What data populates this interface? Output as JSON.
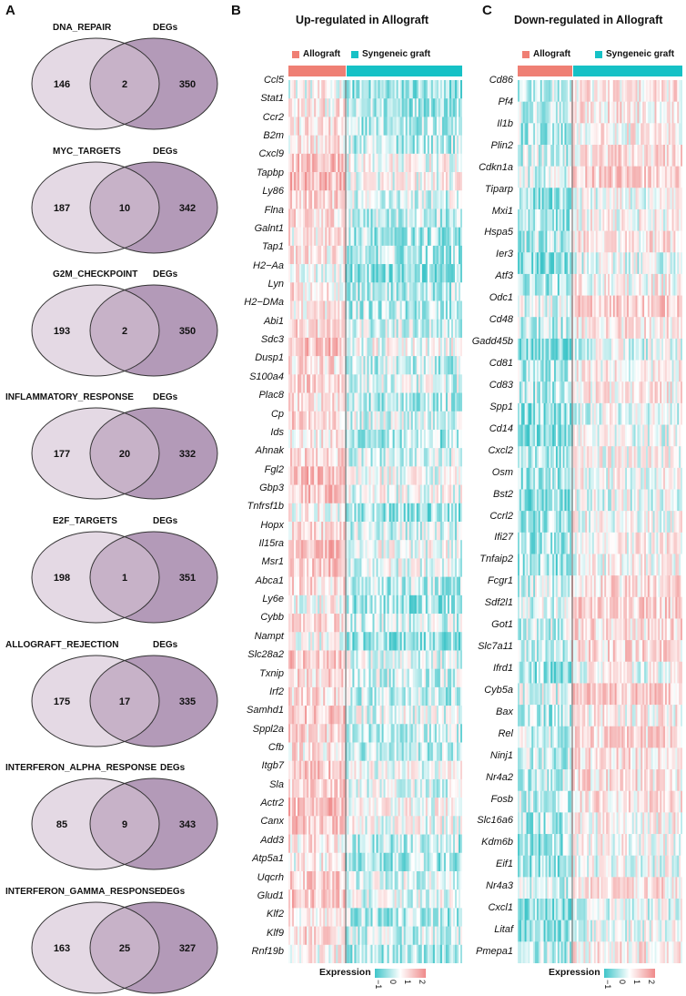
{
  "panels": {
    "a": "A",
    "b": "B",
    "c": "C"
  },
  "venns": [
    {
      "set": "DNA_REPAIR",
      "degs_label": "DEGs",
      "left": "146",
      "overlap": "2",
      "right": "350"
    },
    {
      "set": "MYC_TARGETS",
      "degs_label": "DEGs",
      "left": "187",
      "overlap": "10",
      "right": "342"
    },
    {
      "set": "G2M_CHECKPOINT",
      "degs_label": "DEGs",
      "left": "193",
      "overlap": "2",
      "right": "350"
    },
    {
      "set": "INFLAMMATORY_RESPONSE",
      "degs_label": "DEGs",
      "left": "177",
      "overlap": "20",
      "right": "332"
    },
    {
      "set": "E2F_TARGETS",
      "degs_label": "DEGs",
      "left": "198",
      "overlap": "1",
      "right": "351"
    },
    {
      "set": "ALLOGRAFT_REJECTION",
      "degs_label": "DEGs",
      "left": "175",
      "overlap": "17",
      "right": "335"
    },
    {
      "set": "INTERFERON_ALPHA_RESPONSE",
      "degs_label": "DEGs",
      "left": "85",
      "overlap": "9",
      "right": "343"
    },
    {
      "set": "INTERFERON_GAMMA_RESPONSE",
      "degs_label": "DEGs",
      "left": "163",
      "overlap": "25",
      "right": "327"
    }
  ],
  "heatmap_b": {
    "title": "Up-regulated in Allograft",
    "legend_allograft": "Allograft",
    "legend_syngeneic": "Syngeneic graft",
    "genes": [
      "Ccl5",
      "Stat1",
      "Ccr2",
      "B2m",
      "Cxcl9",
      "Tapbp",
      "Ly86",
      "Flna",
      "Galnt1",
      "Tap1",
      "H2−Aa",
      "Lyn",
      "H2−DMa",
      "Abi1",
      "Sdc3",
      "Dusp1",
      "S100a4",
      "Plac8",
      "Cp",
      "Ids",
      "Ahnak",
      "Fgl2",
      "Gbp3",
      "Tnfrsf1b",
      "Hopx",
      "Il15ra",
      "Msr1",
      "Abca1",
      "Ly6e",
      "Cybb",
      "Nampt",
      "Slc28a2",
      "Txnip",
      "Irf2",
      "Samhd1",
      "Sppl2a",
      "Cfb",
      "Itgb7",
      "Sla",
      "Actr2",
      "Canx",
      "Add3",
      "Atp5a1",
      "Uqcrh",
      "Glud1",
      "Klf2",
      "Klf9",
      "Rnf19b"
    ],
    "expression_label": "Expression",
    "ticks": [
      "−1",
      "0",
      "1",
      "2"
    ]
  },
  "heatmap_c": {
    "title": "Down-regulated in Allograft",
    "legend_allograft": "Allograft",
    "legend_syngeneic": "Syngeneic graft",
    "genes": [
      "Cd86",
      "Pf4",
      "Il1b",
      "Plin2",
      "Cdkn1a",
      "Tiparp",
      "Mxi1",
      "Hspa5",
      "Ier3",
      "Atf3",
      "Odc1",
      "Cd48",
      "Gadd45b",
      "Cd81",
      "Cd83",
      "Spp1",
      "Cd14",
      "Cxcl2",
      "Osm",
      "Bst2",
      "Ccrl2",
      "Ifi27",
      "Tnfaip2",
      "Fcgr1",
      "Sdf2l1",
      "Got1",
      "Slc7a11",
      "Ifrd1",
      "Cyb5a",
      "Bax",
      "Rel",
      "Ninj1",
      "Nr4a2",
      "Fosb",
      "Slc16a6",
      "Kdm6b",
      "Eif1",
      "Nr4a3",
      "Cxcl1",
      "Litaf",
      "Pmepa1"
    ],
    "expression_label": "Expression",
    "ticks": [
      "−1",
      "0",
      "1",
      "2"
    ]
  },
  "colors": {
    "allograft": "#ef7f74",
    "syngeneic": "#16c1c6",
    "venn_left": "#e4d9e4",
    "venn_right": "#b39ab8",
    "venn_overlap": "#c7b2c8",
    "low": "#3fc5c9",
    "mid": "#ffffff",
    "high": "#ef8a8a"
  }
}
